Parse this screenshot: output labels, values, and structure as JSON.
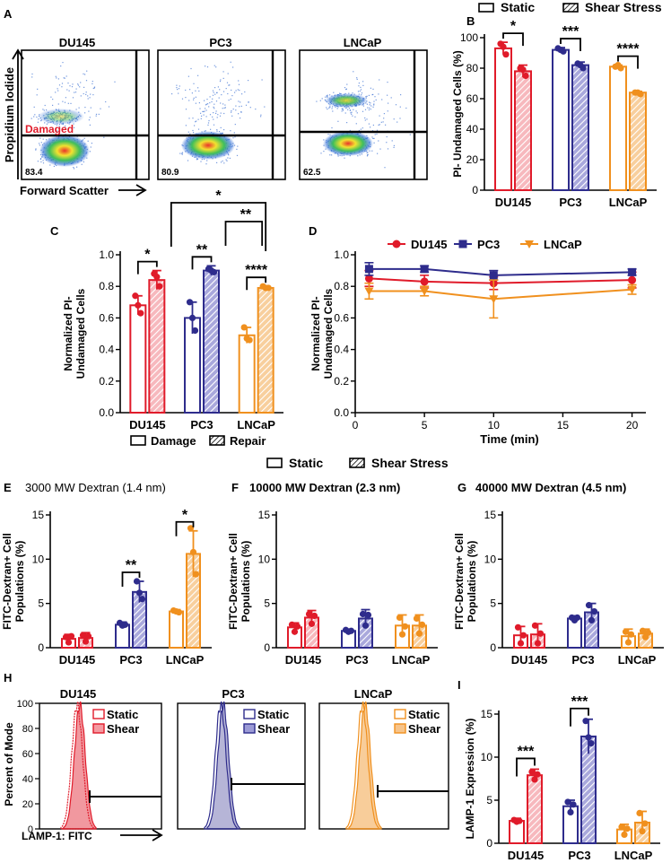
{
  "colors": {
    "DU145": "#e01b2a",
    "PC3": "#2e2c8c",
    "LNCaP": "#f0901e",
    "axis": "#000000"
  },
  "legend_static_shear": {
    "static": "Static",
    "shear": "Shear Stress"
  },
  "panels": {
    "A": {
      "letter": "A",
      "xlabel": "Forward Scatter",
      "ylabel": "Propidium Iodide",
      "gate_label": "Damaged",
      "plots": [
        {
          "title": "DU145",
          "pct": "83.4"
        },
        {
          "title": "PC3",
          "pct": "80.9"
        },
        {
          "title": "LNCaP",
          "pct": "62.5"
        }
      ]
    },
    "B": {
      "letter": "B",
      "ylabel": "PI- Undamaged Cells (%)",
      "yticks": [
        "0",
        "20",
        "40",
        "60",
        "80",
        "100"
      ],
      "categories": [
        "DU145",
        "PC3",
        "LNCaP"
      ],
      "sig": [
        "*",
        "***",
        "****"
      ]
    },
    "C": {
      "letter": "C",
      "ylabel_1": "Normalized PI-",
      "ylabel_2": "Undamaged Cells",
      "yticks": [
        "0.0",
        "0.2",
        "0.4",
        "0.6",
        "0.8",
        "1.0"
      ],
      "categories": [
        "DU145",
        "PC3",
        "LNCaP"
      ],
      "sig": [
        "*",
        "**",
        "****"
      ],
      "sig_cross": [
        "*",
        "**"
      ],
      "legend": {
        "damage": "Damage",
        "repair": "Repair"
      }
    },
    "D": {
      "letter": "D",
      "ylabel_1": "Normalized PI-",
      "ylabel_2": "Undamaged Cells",
      "xlabel": "Time (min)",
      "xticks": [
        "0",
        "5",
        "10",
        "15",
        "20"
      ],
      "yticks": [
        "0.0",
        "0.2",
        "0.4",
        "0.6",
        "0.8",
        "1.0"
      ],
      "legend": [
        "DU145",
        "PC3",
        "LNCaP"
      ]
    },
    "E": {
      "letter": "E",
      "title": "3000 MW Dextran (1.4 nm)",
      "ylabel_1": "FITC-Dextran+ Cell",
      "ylabel_2": "Populations (%)",
      "yticks": [
        "0",
        "5",
        "10",
        "15"
      ],
      "categories": [
        "DU145",
        "PC3",
        "LNCaP"
      ],
      "sig": [
        "**",
        "*"
      ]
    },
    "F": {
      "letter": "F",
      "title": "10000 MW Dextran (2.3 nm)",
      "ylabel_1": "FITC-Dextran+ Cell",
      "ylabel_2": "Populations (%)",
      "yticks": [
        "0",
        "5",
        "10",
        "15"
      ],
      "categories": [
        "DU145",
        "PC3",
        "LNCaP"
      ]
    },
    "G": {
      "letter": "G",
      "title": "40000 MW Dextran (4.5 nm)",
      "ylabel_1": "FITC-Dextran+ Cell",
      "ylabel_2": "Populations (%)",
      "yticks": [
        "0",
        "5",
        "10",
        "15"
      ],
      "categories": [
        "DU145",
        "PC3",
        "LNCaP"
      ]
    },
    "H": {
      "letter": "H",
      "ylabel": "Percent of Mode",
      "xlabel": "LAMP-1: FITC",
      "yticks": [
        "0",
        "20",
        "40",
        "60",
        "80",
        "100"
      ],
      "plots": [
        {
          "title": "DU145",
          "static": "Static",
          "shear": "Shear"
        },
        {
          "title": "PC3",
          "static": "Static",
          "shear": "Shear"
        },
        {
          "title": "LNCaP",
          "static": "Static",
          "shear": "Shear"
        }
      ]
    },
    "I": {
      "letter": "I",
      "ylabel": "LAMP-1 Expression (%)",
      "yticks": [
        "0",
        "5",
        "10",
        "15"
      ],
      "categories": [
        "DU145",
        "PC3",
        "LNCaP"
      ],
      "sig": [
        "***",
        "***"
      ]
    }
  },
  "chart_data": [
    {
      "panel": "B",
      "type": "bar",
      "categories": [
        "DU145",
        "PC3",
        "LNCaP"
      ],
      "ylim": [
        0,
        100
      ],
      "series": [
        {
          "name": "Static",
          "values": [
            93,
            92,
            81
          ],
          "err": [
            4,
            1.5,
            1
          ],
          "points": [
            [
              96,
              94,
              89
            ],
            [
              93,
              92,
              91
            ],
            [
              81,
              82,
              80
            ]
          ]
        },
        {
          "name": "Shear Stress",
          "values": [
            78,
            82,
            64
          ],
          "err": [
            4,
            2,
            0.8
          ],
          "points": [
            [
              80,
              79,
              75
            ],
            [
              83,
              82,
              80
            ],
            [
              64,
              64,
              63
            ]
          ]
        }
      ]
    },
    {
      "panel": "C",
      "type": "bar",
      "categories": [
        "DU145",
        "PC3",
        "LNCaP"
      ],
      "ylim": [
        0,
        1.0
      ],
      "series": [
        {
          "name": "Damage",
          "values": [
            0.68,
            0.6,
            0.49
          ],
          "err": [
            0.06,
            0.1,
            0.05
          ],
          "points": [
            [
              0.74,
              0.68,
              0.63
            ],
            [
              0.7,
              0.6,
              0.52
            ],
            [
              0.54,
              0.47,
              0.46
            ]
          ]
        },
        {
          "name": "Repair",
          "values": [
            0.84,
            0.9,
            0.79
          ],
          "err": [
            0.06,
            0.03,
            0.01
          ],
          "points": [
            [
              0.88,
              0.86,
              0.8
            ],
            [
              0.91,
              0.9,
              0.89
            ],
            [
              0.8,
              0.79,
              0.79
            ]
          ]
        }
      ]
    },
    {
      "panel": "D",
      "type": "line",
      "x": [
        1,
        5,
        10,
        20
      ],
      "ylim": [
        0,
        1.0
      ],
      "xlim": [
        0,
        21
      ],
      "series": [
        {
          "name": "DU145",
          "values": [
            0.85,
            0.83,
            0.82,
            0.84
          ],
          "err": [
            0.05,
            0.04,
            0.04,
            0.05
          ]
        },
        {
          "name": "PC3",
          "values": [
            0.91,
            0.91,
            0.87,
            0.89
          ],
          "err": [
            0.04,
            0.02,
            0.03,
            0.02
          ]
        },
        {
          "name": "LNCaP",
          "values": [
            0.77,
            0.77,
            0.72,
            0.78
          ],
          "err": [
            0.05,
            0.03,
            0.12,
            0.03
          ]
        }
      ]
    },
    {
      "panel": "E",
      "type": "bar",
      "categories": [
        "DU145",
        "PC3",
        "LNCaP"
      ],
      "ylim": [
        0,
        15
      ],
      "series": [
        {
          "name": "Static",
          "values": [
            1.0,
            2.6,
            4.1
          ],
          "err": [
            0.5,
            0.3,
            0.2
          ],
          "points": [
            [
              1.2,
              0.6,
              1.3
            ],
            [
              2.8,
              2.5,
              2.6
            ],
            [
              4.2,
              4.1,
              4.0
            ]
          ]
        },
        {
          "name": "Shear Stress",
          "values": [
            1.1,
            6.3,
            10.6
          ],
          "err": [
            0.6,
            1.2,
            2.6
          ],
          "points": [
            [
              1.4,
              0.7,
              1.3
            ],
            [
              7.5,
              6.2,
              5.5
            ],
            [
              13.5,
              10.8,
              8.3
            ]
          ]
        }
      ]
    },
    {
      "panel": "F",
      "type": "bar",
      "categories": [
        "DU145",
        "PC3",
        "LNCaP"
      ],
      "ylim": [
        0,
        15
      ],
      "series": [
        {
          "name": "Static",
          "values": [
            2.3,
            1.9,
            2.5
          ],
          "err": [
            0.5,
            0.2,
            1.2
          ],
          "points": [
            [
              2.6,
              1.8,
              2.4
            ],
            [
              2.0,
              1.8,
              1.9
            ],
            [
              3.4,
              1.5,
              2.4
            ]
          ]
        },
        {
          "name": "Shear Stress",
          "values": [
            3.4,
            3.3,
            2.5
          ],
          "err": [
            0.8,
            1.0,
            1.2
          ],
          "points": [
            [
              3.8,
              2.7,
              3.6
            ],
            [
              3.8,
              2.5,
              3.7
            ],
            [
              3.3,
              1.6,
              2.6
            ]
          ]
        }
      ]
    },
    {
      "panel": "G",
      "type": "bar",
      "categories": [
        "DU145",
        "PC3",
        "LNCaP"
      ],
      "ylim": [
        0,
        15
      ],
      "series": [
        {
          "name": "Static",
          "values": [
            1.4,
            3.3,
            1.3
          ],
          "err": [
            1.0,
            0.3,
            0.8
          ],
          "points": [
            [
              2.3,
              0.5,
              1.4
            ],
            [
              3.4,
              3.1,
              3.4
            ],
            [
              1.8,
              0.6,
              1.5
            ]
          ]
        },
        {
          "name": "Shear Stress",
          "values": [
            1.5,
            4.0,
            1.6
          ],
          "err": [
            1.2,
            1.0,
            0.5
          ],
          "points": [
            [
              2.5,
              0.5,
              1.6
            ],
            [
              4.8,
              3.1,
              4.1
            ],
            [
              1.9,
              1.2,
              1.7
            ]
          ]
        }
      ]
    },
    {
      "panel": "I",
      "type": "bar",
      "categories": [
        "DU145",
        "PC3",
        "LNCaP"
      ],
      "ylim": [
        0,
        15
      ],
      "series": [
        {
          "name": "Static",
          "values": [
            2.6,
            4.3,
            1.6
          ],
          "err": [
            0.3,
            0.7,
            0.6
          ],
          "points": [
            [
              2.7,
              2.5,
              2.6
            ],
            [
              4.8,
              3.6,
              4.5
            ],
            [
              1.9,
              1.0,
              1.7
            ]
          ]
        },
        {
          "name": "Shear Stress",
          "values": [
            7.9,
            12.4,
            2.4
          ],
          "err": [
            0.7,
            2.0,
            1.3
          ],
          "points": [
            [
              8.3,
              7.4,
              8.0
            ],
            [
              14.2,
              12.3,
              11.6
            ],
            [
              3.5,
              1.4,
              2.3
            ]
          ]
        }
      ]
    }
  ]
}
